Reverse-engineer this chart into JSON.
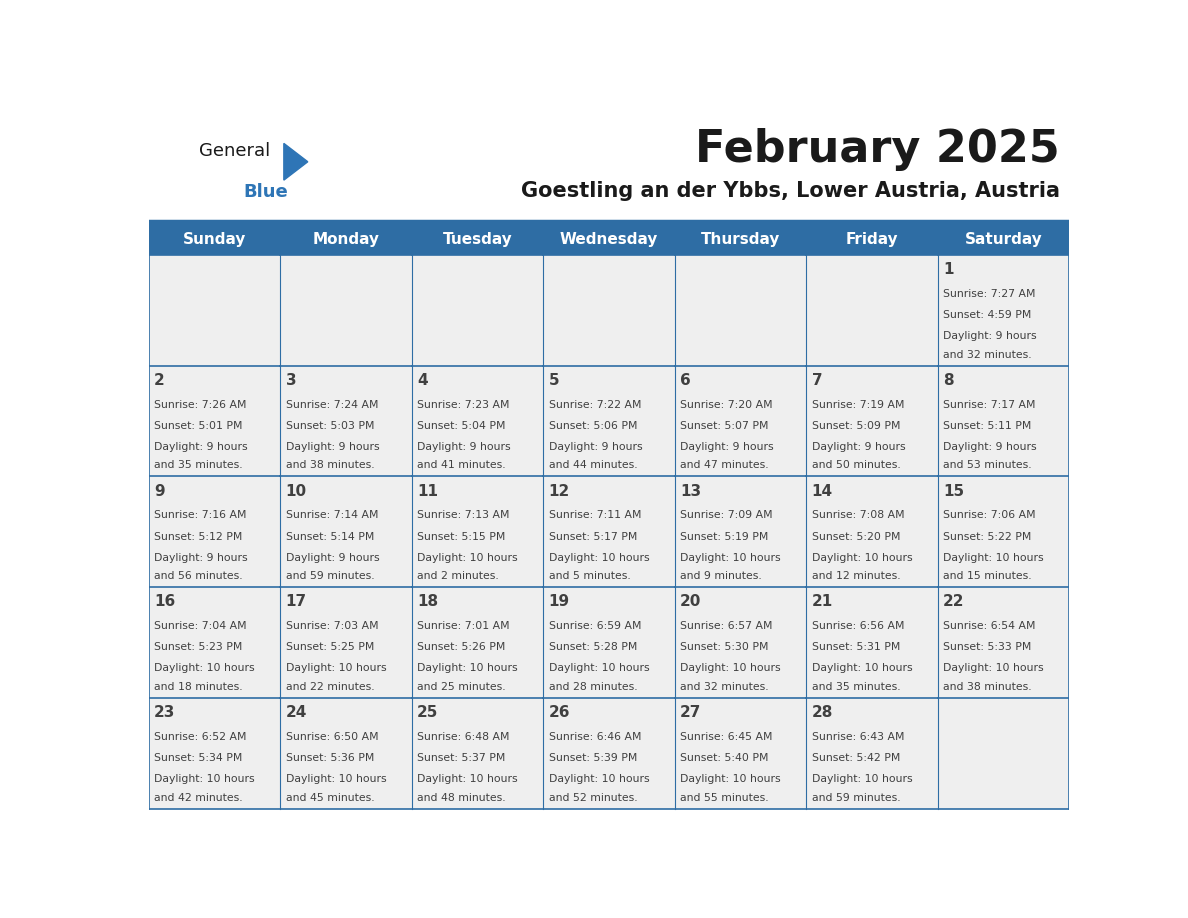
{
  "title": "February 2025",
  "subtitle": "Goestling an der Ybbs, Lower Austria, Austria",
  "days_of_week": [
    "Sunday",
    "Monday",
    "Tuesday",
    "Wednesday",
    "Thursday",
    "Friday",
    "Saturday"
  ],
  "header_bg": "#2E6DA4",
  "header_fg": "#FFFFFF",
  "cell_bg_light": "#EFEFEF",
  "border_color": "#2E6DA4",
  "text_color": "#404040",
  "title_color": "#1a1a1a",
  "subtitle_color": "#1a1a1a",
  "logo_general_color": "#1a1a1a",
  "logo_blue_color": "#2E75B6",
  "calendar_data": [
    [
      null,
      null,
      null,
      null,
      null,
      null,
      {
        "day": 1,
        "sunrise": "7:27 AM",
        "sunset": "4:59 PM",
        "daylight": "9 hours and 32 minutes"
      }
    ],
    [
      {
        "day": 2,
        "sunrise": "7:26 AM",
        "sunset": "5:01 PM",
        "daylight": "9 hours and 35 minutes"
      },
      {
        "day": 3,
        "sunrise": "7:24 AM",
        "sunset": "5:03 PM",
        "daylight": "9 hours and 38 minutes"
      },
      {
        "day": 4,
        "sunrise": "7:23 AM",
        "sunset": "5:04 PM",
        "daylight": "9 hours and 41 minutes"
      },
      {
        "day": 5,
        "sunrise": "7:22 AM",
        "sunset": "5:06 PM",
        "daylight": "9 hours and 44 minutes"
      },
      {
        "day": 6,
        "sunrise": "7:20 AM",
        "sunset": "5:07 PM",
        "daylight": "9 hours and 47 minutes"
      },
      {
        "day": 7,
        "sunrise": "7:19 AM",
        "sunset": "5:09 PM",
        "daylight": "9 hours and 50 minutes"
      },
      {
        "day": 8,
        "sunrise": "7:17 AM",
        "sunset": "5:11 PM",
        "daylight": "9 hours and 53 minutes"
      }
    ],
    [
      {
        "day": 9,
        "sunrise": "7:16 AM",
        "sunset": "5:12 PM",
        "daylight": "9 hours and 56 minutes"
      },
      {
        "day": 10,
        "sunrise": "7:14 AM",
        "sunset": "5:14 PM",
        "daylight": "9 hours and 59 minutes"
      },
      {
        "day": 11,
        "sunrise": "7:13 AM",
        "sunset": "5:15 PM",
        "daylight": "10 hours and 2 minutes"
      },
      {
        "day": 12,
        "sunrise": "7:11 AM",
        "sunset": "5:17 PM",
        "daylight": "10 hours and 5 minutes"
      },
      {
        "day": 13,
        "sunrise": "7:09 AM",
        "sunset": "5:19 PM",
        "daylight": "10 hours and 9 minutes"
      },
      {
        "day": 14,
        "sunrise": "7:08 AM",
        "sunset": "5:20 PM",
        "daylight": "10 hours and 12 minutes"
      },
      {
        "day": 15,
        "sunrise": "7:06 AM",
        "sunset": "5:22 PM",
        "daylight": "10 hours and 15 minutes"
      }
    ],
    [
      {
        "day": 16,
        "sunrise": "7:04 AM",
        "sunset": "5:23 PM",
        "daylight": "10 hours and 18 minutes"
      },
      {
        "day": 17,
        "sunrise": "7:03 AM",
        "sunset": "5:25 PM",
        "daylight": "10 hours and 22 minutes"
      },
      {
        "day": 18,
        "sunrise": "7:01 AM",
        "sunset": "5:26 PM",
        "daylight": "10 hours and 25 minutes"
      },
      {
        "day": 19,
        "sunrise": "6:59 AM",
        "sunset": "5:28 PM",
        "daylight": "10 hours and 28 minutes"
      },
      {
        "day": 20,
        "sunrise": "6:57 AM",
        "sunset": "5:30 PM",
        "daylight": "10 hours and 32 minutes"
      },
      {
        "day": 21,
        "sunrise": "6:56 AM",
        "sunset": "5:31 PM",
        "daylight": "10 hours and 35 minutes"
      },
      {
        "day": 22,
        "sunrise": "6:54 AM",
        "sunset": "5:33 PM",
        "daylight": "10 hours and 38 minutes"
      }
    ],
    [
      {
        "day": 23,
        "sunrise": "6:52 AM",
        "sunset": "5:34 PM",
        "daylight": "10 hours and 42 minutes"
      },
      {
        "day": 24,
        "sunrise": "6:50 AM",
        "sunset": "5:36 PM",
        "daylight": "10 hours and 45 minutes"
      },
      {
        "day": 25,
        "sunrise": "6:48 AM",
        "sunset": "5:37 PM",
        "daylight": "10 hours and 48 minutes"
      },
      {
        "day": 26,
        "sunrise": "6:46 AM",
        "sunset": "5:39 PM",
        "daylight": "10 hours and 52 minutes"
      },
      {
        "day": 27,
        "sunrise": "6:45 AM",
        "sunset": "5:40 PM",
        "daylight": "10 hours and 55 minutes"
      },
      {
        "day": 28,
        "sunrise": "6:43 AM",
        "sunset": "5:42 PM",
        "daylight": "10 hours and 59 minutes"
      },
      null
    ]
  ],
  "fig_width": 11.88,
  "fig_height": 9.18
}
